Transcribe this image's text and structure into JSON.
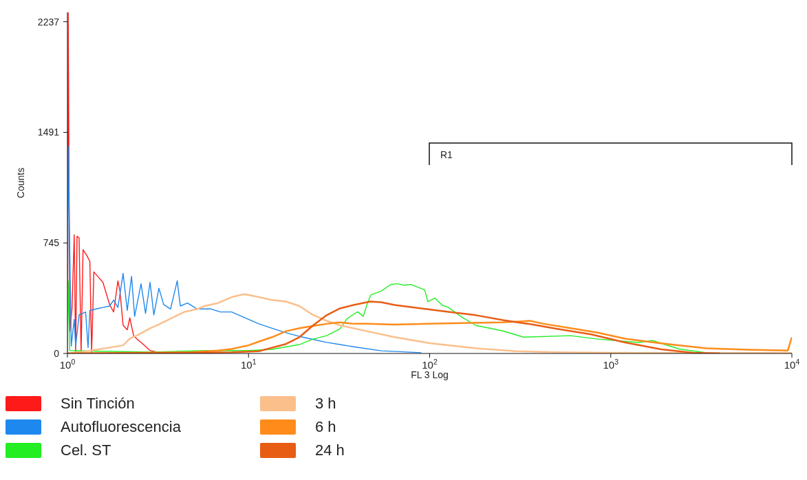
{
  "chart_data": {
    "type": "line",
    "xlabel": "FL 3 Log",
    "ylabel": "Counts",
    "log": "x",
    "xlim": [
      1,
      10000
    ],
    "xticks": [
      {
        "value": 1,
        "label": "10$^{0}$"
      },
      {
        "value": 10,
        "label": "10$^{1}$"
      },
      {
        "value": 100,
        "label": "10$^{2}$"
      },
      {
        "value": 1000,
        "label": "10$^{3}$"
      },
      {
        "value": 10000,
        "label": "10$^{4}$"
      }
    ],
    "ylim": [
      0,
      2300
    ],
    "yticks": [
      0,
      745,
      1491,
      2237
    ],
    "legend": "bottom left",
    "annotations": [
      "R1"
    ],
    "series": [
      {
        "name": "Sin Tinción",
        "color": "#ff1a1a",
        "x": [
          1,
          1.01,
          1.03,
          1.06,
          1.09,
          1.11,
          1.13,
          1.16,
          1.19,
          1.22,
          1.28,
          1.33,
          1.36,
          1.4,
          1.47,
          1.57,
          1.71,
          1.8,
          1.9,
          1.95,
          2.03,
          2.14,
          2.21,
          2.32,
          2.41,
          2.63,
          2.86,
          3.12,
          3.4,
          5.71
        ],
        "values": [
          0,
          2300,
          150,
          300,
          800,
          0,
          790,
          780,
          0,
          700,
          660,
          620,
          0,
          550,
          520,
          480,
          330,
          280,
          490,
          420,
          190,
          160,
          240,
          120,
          100,
          60,
          20,
          10,
          5,
          0
        ]
      },
      {
        "name": "Autofluorescencia",
        "color": "#1e88ee",
        "x": [
          1,
          1.01,
          1.03,
          1.05,
          1.09,
          1.11,
          1.16,
          1.21,
          1.26,
          1.3,
          1.33,
          1.44,
          1.57,
          1.71,
          1.8,
          1.9,
          2.03,
          2.14,
          2.26,
          2.35,
          2.55,
          2.7,
          2.86,
          3,
          3.2,
          3.4,
          3.71,
          4.04,
          4.2,
          4.6,
          5.2,
          6.2,
          7,
          8.06,
          10,
          11.4,
          13.5,
          16.1,
          19.1,
          22.7,
          27,
          32,
          38,
          54,
          90
        ],
        "values": [
          0,
          1400,
          700,
          50,
          230,
          50,
          260,
          270,
          280,
          40,
          290,
          300,
          310,
          320,
          360,
          310,
          540,
          290,
          520,
          250,
          470,
          270,
          480,
          260,
          440,
          330,
          300,
          490,
          320,
          340,
          300,
          300,
          280,
          280,
          230,
          200,
          170,
          140,
          115,
          95,
          75,
          60,
          45,
          18,
          5
        ]
      },
      {
        "name": "Cel. ST",
        "color": "#22ee22",
        "x": [
          1,
          1.01,
          1.03,
          1.5,
          3,
          6,
          10,
          13.5,
          19.1,
          22.7,
          27,
          32,
          35,
          40,
          43,
          45,
          47.4,
          53.7,
          61,
          66.6,
          72.4,
          78.8,
          93.9,
          97.7,
          107,
          117,
          127,
          151,
          180,
          254,
          330,
          600,
          849,
          1425,
          1700,
          2390,
          3370,
          4000
        ],
        "values": [
          0,
          490,
          20,
          15,
          10,
          20,
          20,
          28,
          60,
          97,
          120,
          166,
          235,
          281,
          250,
          327,
          396,
          419,
          465,
          470,
          460,
          465,
          428,
          350,
          373,
          327,
          310,
          244,
          189,
          152,
          110,
          120,
          97,
          74,
          87,
          30,
          5,
          0
        ]
      },
      {
        "name": "3 h",
        "color": "#fbbf8c",
        "x": [
          1,
          1.2,
          1.44,
          1.71,
          2.03,
          2.21,
          2.41,
          2.86,
          3.12,
          3.71,
          4.41,
          5.24,
          5.71,
          6.78,
          8.06,
          9.5,
          11.4,
          13.5,
          16.1,
          19.1,
          22.7,
          27,
          32,
          45,
          64,
          100,
          180,
          300,
          500,
          1000,
          10000
        ],
        "values": [
          0,
          10,
          25,
          40,
          55,
          100,
          120,
          170,
          190,
          235,
          280,
          300,
          320,
          340,
          380,
          400,
          380,
          360,
          350,
          320,
          260,
          220,
          190,
          150,
          110,
          70,
          35,
          15,
          8,
          5,
          3
        ]
      },
      {
        "name": "6 h",
        "color": "#ff8c1a",
        "x": [
          1,
          2,
          4.8,
          6.78,
          8.06,
          10,
          11.4,
          13.5,
          16.1,
          19.1,
          22.7,
          27,
          32,
          38,
          45,
          64,
          100,
          151,
          254,
          358,
          426,
          601,
          849,
          1200,
          1700,
          2390,
          3370,
          5660,
          9500,
          10000
        ],
        "values": [
          0,
          3,
          8,
          20,
          30,
          55,
          80,
          110,
          150,
          170,
          185,
          200,
          210,
          200,
          200,
          195,
          200,
          205,
          210,
          220,
          200,
          170,
          140,
          100,
          75,
          55,
          35,
          25,
          20,
          110
        ]
      },
      {
        "name": "24 h",
        "color": "#e85d14",
        "x": [
          1,
          4,
          8.06,
          11.4,
          16.1,
          19.1,
          22.7,
          27,
          32,
          38,
          47,
          54,
          64,
          90,
          127,
          180,
          254,
          301,
          358,
          506,
          780,
          1200,
          1900,
          2840,
          4000
        ],
        "values": [
          0,
          3,
          8,
          15,
          64,
          110,
          189,
          258,
          304,
          327,
          350,
          345,
          327,
          304,
          281,
          258,
          225,
          211,
          198,
          166,
          129,
          74,
          28,
          5,
          0
        ]
      }
    ]
  }
}
